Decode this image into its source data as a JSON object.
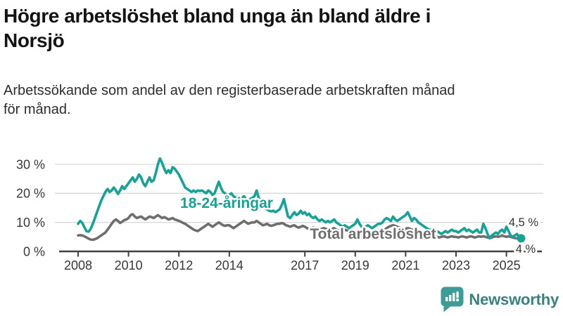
{
  "header": {
    "title": "Högre arbetslöshet bland unga än bland äldre i Norsjö",
    "title_lines": [
      "Högre arbetslöshet bland unga än bland äldre i",
      "Norsjö"
    ],
    "subtitle": "Arbetssökande som andel av den registerbaserade arbetskraften månad för månad.",
    "subtitle_lines": [
      "Arbetssökande som andel av den registerbaserade arbetskraften månad",
      "för månad."
    ]
  },
  "chart_data": {
    "type": "line",
    "unit": "%",
    "frequency": "monthly",
    "x_start_year": 2008,
    "x_end_year_fraction": 2025.58,
    "x_tick_years": [
      2008,
      2010,
      2012,
      2014,
      2017,
      2019,
      2021,
      2023,
      2025
    ],
    "x_tick_labels": [
      "2008",
      "2010",
      "2012",
      "2014",
      "2017",
      "2019",
      "2021",
      "2023",
      "2025"
    ],
    "y_ticks": [
      0,
      10,
      20,
      30
    ],
    "y_tick_labels": [
      "0 %",
      "10 %",
      "20 %",
      "30 %"
    ],
    "ylim": [
      0,
      33
    ],
    "grid": "horizontal",
    "colors": {
      "youth": "#16a296",
      "total": "#6e6e6e",
      "grid": "#d9d9d9",
      "axis": "#404040",
      "text": "#383838"
    },
    "series": [
      {
        "name": "18-24-åringar",
        "color": "#16a296",
        "end_label": "4,5 %",
        "end_dot": true,
        "values": [
          9.5,
          10.5,
          9.8,
          8.3,
          7,
          6.8,
          7.8,
          9.5,
          11.5,
          13.5,
          15.5,
          17.5,
          19,
          20.5,
          21.5,
          20.5,
          21,
          22,
          21,
          19.8,
          21,
          22.5,
          21.5,
          22.5,
          23.5,
          24.5,
          25.5,
          24,
          25,
          26.5,
          25.5,
          23.5,
          22.5,
          24,
          25.5,
          24,
          24.5,
          27,
          30,
          32,
          30.5,
          28.5,
          27,
          28,
          27,
          29,
          28.5,
          27.5,
          26.5,
          25,
          23.5,
          22,
          21.5,
          21,
          20.5,
          21,
          20.5,
          21,
          20.8,
          21,
          20.5,
          20,
          21,
          20.5,
          19.5,
          20,
          22,
          24,
          22,
          20.5,
          20,
          19.5,
          19.5,
          20,
          19,
          18.5,
          19,
          18,
          18.5,
          19,
          18,
          17.5,
          18,
          18.5,
          19,
          21,
          18.5,
          17,
          16,
          15,
          14.5,
          14,
          13.8,
          14,
          13.5,
          14,
          14.5,
          16,
          18,
          15,
          12,
          11.5,
          12.5,
          13.5,
          12.5,
          13,
          14,
          13,
          13.5,
          12.5,
          13,
          12,
          11.5,
          12,
          11,
          10.5,
          11,
          10.5,
          10,
          10.5,
          10,
          10.5,
          11,
          10,
          9.5,
          9,
          8.5,
          9,
          8.5,
          8,
          8.5,
          9,
          9.5,
          11,
          9.5,
          8.5,
          8,
          8.5,
          9,
          8.5,
          8,
          8.5,
          9,
          9.5,
          9.5,
          10,
          11,
          11.5,
          11,
          10.5,
          12,
          11,
          10.5,
          11,
          11.5,
          12,
          12.5,
          13.5,
          12,
          10.5,
          11.5,
          11,
          10,
          9.5,
          9,
          8.5,
          8,
          7.5,
          7.5,
          7,
          6.5,
          7,
          6.5,
          6,
          6.5,
          7,
          6.5,
          7,
          7.5,
          7,
          7,
          6.5,
          7,
          7.5,
          8,
          7,
          7.5,
          7,
          6.5,
          7,
          7.5,
          6.5,
          6.5,
          9.5,
          8,
          6,
          4.5,
          5.5,
          6,
          6.5,
          6,
          7,
          7.5,
          6.5,
          8.5,
          7,
          5.5,
          5,
          5.5,
          6,
          5,
          4.5
        ]
      },
      {
        "name": "Total arbetslöshet",
        "color": "#6e6e6e",
        "end_label": "4 %",
        "end_dot": false,
        "values": [
          5.5,
          5.6,
          5.5,
          5.2,
          4.8,
          4.4,
          4.1,
          4,
          4.2,
          4.5,
          5,
          5.5,
          6,
          6.5,
          7.5,
          8.5,
          9.5,
          10.5,
          11,
          10.5,
          9.8,
          10.2,
          10.8,
          11,
          11.5,
          12.5,
          12.8,
          12,
          11.5,
          11.8,
          12,
          11.5,
          11,
          11.5,
          12,
          11.8,
          11.5,
          12,
          12.5,
          12,
          11.5,
          11.8,
          11.5,
          11,
          11.2,
          11.5,
          11,
          10.8,
          10.5,
          10.2,
          9.8,
          9.5,
          9,
          8.5,
          8,
          7.5,
          7.2,
          7,
          7.5,
          8,
          8.5,
          9,
          9.5,
          9,
          8.5,
          9,
          9.5,
          10,
          9.5,
          9,
          8.8,
          9,
          9,
          8.5,
          8,
          8.5,
          9,
          9.5,
          10,
          10.5,
          10,
          9.5,
          9.8,
          10,
          10,
          10.5,
          10,
          9.5,
          9,
          9.2,
          9.5,
          9,
          8.8,
          9,
          9.3,
          9.5,
          9.5,
          9.8,
          9.5,
          9,
          8.8,
          8.5,
          8.8,
          9,
          8.5,
          8.2,
          8.5,
          8.8,
          8.5,
          8,
          7.8,
          8,
          8.2,
          8,
          7.8,
          7.5,
          7.8,
          8,
          7.8,
          7.5,
          7.5,
          7.8,
          8,
          7.5,
          7.2,
          7,
          7.2,
          7.5,
          7.2,
          7,
          6.8,
          7,
          7,
          7.2,
          7,
          6.8,
          6.5,
          6.8,
          7,
          6.8,
          6.5,
          6.8,
          7,
          7.2,
          7,
          7.2,
          7.5,
          8,
          8.5,
          8.8,
          9,
          8.8,
          8.5,
          8.2,
          8,
          7.8,
          7.8,
          8,
          7.8,
          7.5,
          7.2,
          7,
          6.8,
          6.5,
          6.2,
          6,
          5.8,
          5.5,
          5.5,
          5.3,
          5.2,
          5,
          4.8,
          5,
          5.2,
          5,
          4.8,
          5,
          5.2,
          5,
          5,
          4.8,
          5,
          5.2,
          5,
          4.8,
          5,
          5.2,
          5,
          4.8,
          5,
          5.2,
          5,
          5.2,
          5,
          4.8,
          4.6,
          4.8,
          5,
          5.2,
          5,
          5.2,
          5.5,
          5.2,
          5,
          5.2,
          5,
          4.8,
          4.6,
          4.5,
          4.2,
          4
        ]
      }
    ]
  },
  "footer": {
    "brand": "Newsworthy",
    "brand_icon": "newsworthy-chart-bubble-icon"
  }
}
